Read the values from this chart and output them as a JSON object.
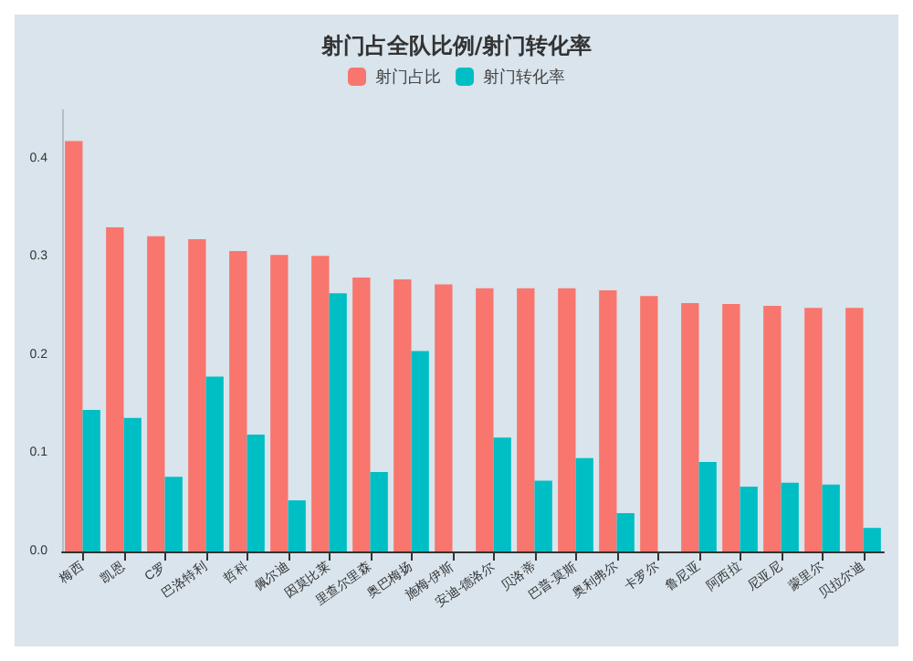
{
  "chart_data": {
    "type": "bar",
    "title": "射门占全队比例/射门转化率",
    "categories": [
      "梅西",
      "凯恩",
      "C罗",
      "巴洛特利",
      "哲科",
      "佩尔迪",
      "因莫比莱",
      "里查尔里森",
      "奥巴梅扬",
      "施梅-伊斯",
      "安迪-德洛尔",
      "贝洛蒂",
      "巴普-莫斯",
      "奥利弗尔",
      "卡罗尔",
      "鲁尼亚",
      "阿西拉",
      "尼亚尼",
      "蒙里尔",
      "贝拉尔迪"
    ],
    "series": [
      {
        "name": "射门占比",
        "color": "#f8766d",
        "values": [
          0.418,
          0.33,
          0.321,
          0.318,
          0.306,
          0.302,
          0.301,
          0.279,
          0.277,
          0.272,
          0.268,
          0.268,
          0.268,
          0.266,
          0.26,
          0.253,
          0.252,
          0.25,
          0.248,
          0.248
        ]
      },
      {
        "name": "射门转化率",
        "color": "#00bfc4",
        "values": [
          0.144,
          0.136,
          0.076,
          0.178,
          0.119,
          0.052,
          0.263,
          0.081,
          0.204,
          0,
          0.116,
          0.072,
          0.095,
          0.039,
          0,
          0.091,
          0.066,
          0.07,
          0.068,
          0.024
        ]
      }
    ],
    "ylim": [
      0,
      0.45
    ],
    "yticks": [
      {
        "value": 0,
        "label": "0.0"
      },
      {
        "value": 0.1,
        "label": "0.1"
      },
      {
        "value": 0.2,
        "label": "0.2"
      },
      {
        "value": 0.3,
        "label": "0.3"
      },
      {
        "value": 0.4,
        "label": "0.4"
      }
    ],
    "grid": false,
    "legend": "top"
  }
}
